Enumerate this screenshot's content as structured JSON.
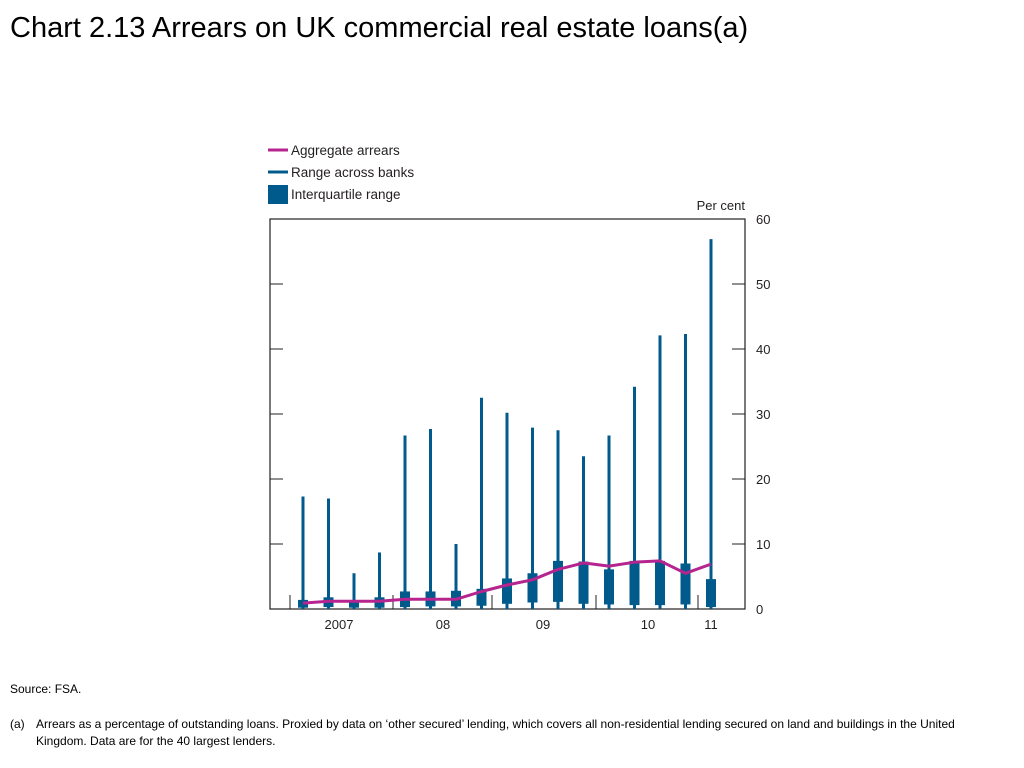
{
  "title": "Chart 2.13  Arrears on UK commercial real estate loans(a)",
  "source": "Source:  FSA.",
  "footnote": {
    "marker": "(a)",
    "text": "Arrears as a percentage of outstanding loans.  Proxied by data on ‘other secured’ lending, which covers all non-residential lending secured on land and buildings in the United Kingdom.  Data are for the 40 largest lenders."
  },
  "colors": {
    "aggregate": "#b5248f",
    "range": "#005a8c",
    "axis": "#231f20"
  },
  "chart_data": {
    "type": "boxplot-line",
    "unit_label": "Per cent",
    "ylim": [
      0,
      60
    ],
    "yticks": [
      0,
      10,
      20,
      30,
      40,
      50,
      60
    ],
    "legend_position": "top-left",
    "legend": [
      {
        "name": "Aggregate arrears",
        "kind": "line"
      },
      {
        "name": "Range across banks",
        "kind": "thin-line"
      },
      {
        "name": "Interquartile range",
        "kind": "box"
      }
    ],
    "year_labels": [
      "2007",
      "08",
      "09",
      "10",
      "11"
    ],
    "periods": [
      {
        "min": 0.0,
        "q1": 0.2,
        "q3": 1.4,
        "max": 17.3,
        "aggregate": 0.9
      },
      {
        "min": 0.0,
        "q1": 0.3,
        "q3": 1.8,
        "max": 17.0,
        "aggregate": 1.2
      },
      {
        "min": 0.0,
        "q1": 0.2,
        "q3": 1.2,
        "max": 5.5,
        "aggregate": 1.2
      },
      {
        "min": 0.0,
        "q1": 0.2,
        "q3": 1.8,
        "max": 8.7,
        "aggregate": 1.2
      },
      {
        "min": 0.0,
        "q1": 0.3,
        "q3": 2.7,
        "max": 26.7,
        "aggregate": 1.5
      },
      {
        "min": 0.0,
        "q1": 0.4,
        "q3": 2.7,
        "max": 27.7,
        "aggregate": 1.5
      },
      {
        "min": 0.0,
        "q1": 0.4,
        "q3": 2.8,
        "max": 10.0,
        "aggregate": 1.5
      },
      {
        "min": 0.0,
        "q1": 0.5,
        "q3": 3.1,
        "max": 32.5,
        "aggregate": 2.7
      },
      {
        "min": 0.0,
        "q1": 0.8,
        "q3": 4.7,
        "max": 30.2,
        "aggregate": 3.7
      },
      {
        "min": 0.0,
        "q1": 1.0,
        "q3": 5.5,
        "max": 27.9,
        "aggregate": 4.5
      },
      {
        "min": 0.0,
        "q1": 1.1,
        "q3": 7.4,
        "max": 27.5,
        "aggregate": 6.1
      },
      {
        "min": 0.0,
        "q1": 0.8,
        "q3": 7.3,
        "max": 23.5,
        "aggregate": 7.1
      },
      {
        "min": 0.0,
        "q1": 0.7,
        "q3": 6.1,
        "max": 26.7,
        "aggregate": 6.6
      },
      {
        "min": 0.0,
        "q1": 0.6,
        "q3": 7.4,
        "max": 34.2,
        "aggregate": 7.2
      },
      {
        "min": 0.0,
        "q1": 0.6,
        "q3": 7.4,
        "max": 42.1,
        "aggregate": 7.4
      },
      {
        "min": 0.0,
        "q1": 0.7,
        "q3": 7.0,
        "max": 42.3,
        "aggregate": 5.5
      },
      {
        "min": 0.0,
        "q1": 0.3,
        "q3": 4.6,
        "max": 56.9,
        "aggregate": 6.9
      }
    ]
  }
}
